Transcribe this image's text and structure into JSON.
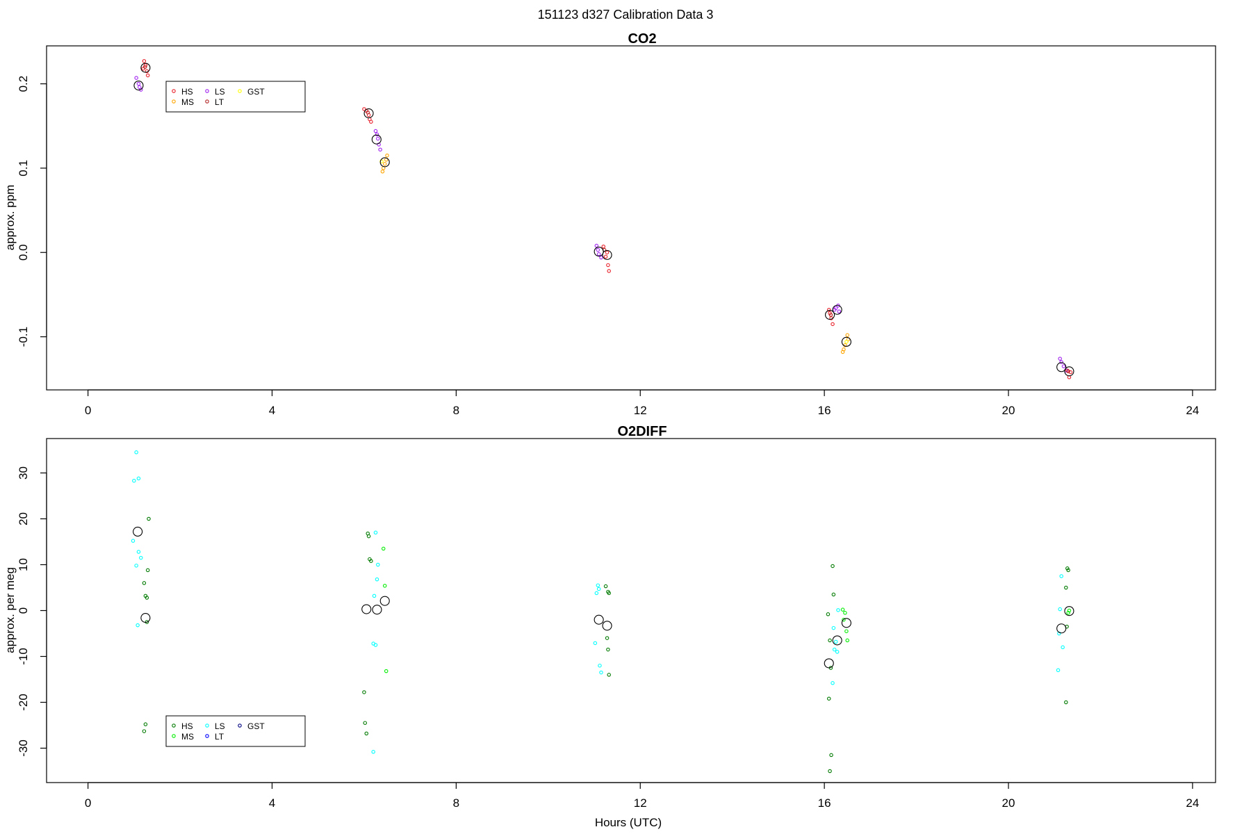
{
  "supertitle": "151123   d327   Calibration Data 3",
  "colors": {
    "HS_co2": "#e8202a",
    "MS_co2": "#ffa500",
    "LS_co2": "#a020f0",
    "LT_co2": "#b22222",
    "GST_co2": "#ffff00",
    "HS_o2": "#007a00",
    "MS_o2": "#00ee00",
    "LS_o2": "#00ffff",
    "LT_o2": "#0000ff",
    "GST_o2": "#000080",
    "mean": "#000000"
  },
  "chart_data": [
    {
      "type": "scatter",
      "title": "CO2",
      "xlabel": "",
      "ylabel": "approx. ppm",
      "xlim": [
        -0.9,
        24.5
      ],
      "ylim": [
        -0.163,
        0.245
      ],
      "xticks": [
        "0",
        "4",
        "8",
        "12",
        "16",
        "20",
        "24"
      ],
      "yticks": [
        "-0.1",
        "0.0",
        "0.1",
        "0.2"
      ],
      "legend": {
        "placement": "top-left",
        "entries": [
          "HS",
          "MS",
          "LS",
          "LT",
          "GST"
        ]
      },
      "series": [
        {
          "name": "HS",
          "points": [
            [
              1.22,
              0.227
            ],
            [
              1.25,
              0.222
            ],
            [
              1.28,
              0.215
            ],
            [
              1.3,
              0.21
            ],
            [
              1.2,
              0.218
            ],
            [
              6.0,
              0.17
            ],
            [
              6.05,
              0.168
            ],
            [
              6.1,
              0.163
            ],
            [
              6.12,
              0.158
            ],
            [
              6.15,
              0.155
            ],
            [
              11.2,
              0.007
            ],
            [
              11.28,
              0.0
            ],
            [
              11.3,
              -0.015
            ],
            [
              11.32,
              -0.022
            ],
            [
              11.25,
              -0.005
            ],
            [
              16.1,
              -0.068
            ],
            [
              16.15,
              -0.078
            ],
            [
              16.18,
              -0.085
            ],
            [
              16.12,
              -0.072
            ],
            [
              21.28,
              -0.14
            ],
            [
              21.32,
              -0.148
            ],
            [
              21.35,
              -0.142
            ]
          ]
        },
        {
          "name": "MS",
          "points": [
            [
              6.4,
              0.096
            ],
            [
              6.42,
              0.1
            ],
            [
              6.45,
              0.105
            ],
            [
              6.48,
              0.11
            ],
            [
              6.5,
              0.115
            ],
            [
              16.4,
              -0.118
            ],
            [
              16.42,
              -0.115
            ],
            [
              16.45,
              -0.11
            ],
            [
              16.5,
              -0.098
            ],
            [
              16.52,
              -0.103
            ]
          ]
        },
        {
          "name": "LS",
          "points": [
            [
              1.05,
              0.207
            ],
            [
              1.1,
              0.2
            ],
            [
              1.12,
              0.196
            ],
            [
              1.15,
              0.193
            ],
            [
              6.25,
              0.144
            ],
            [
              6.28,
              0.14
            ],
            [
              6.3,
              0.135
            ],
            [
              6.32,
              0.128
            ],
            [
              6.35,
              0.122
            ],
            [
              11.05,
              0.008
            ],
            [
              11.08,
              0.003
            ],
            [
              11.1,
              -0.002
            ],
            [
              11.15,
              -0.006
            ],
            [
              16.22,
              -0.068
            ],
            [
              16.25,
              -0.066
            ],
            [
              16.3,
              -0.063
            ],
            [
              16.32,
              -0.07
            ],
            [
              21.12,
              -0.126
            ],
            [
              21.15,
              -0.13
            ],
            [
              21.2,
              -0.135
            ],
            [
              21.25,
              -0.14
            ]
          ]
        },
        {
          "name": "LT",
          "points": [
            [
              1.24,
              0.22
            ],
            [
              6.08,
              0.166
            ],
            [
              11.22,
              0.003
            ],
            [
              16.14,
              -0.074
            ],
            [
              21.3,
              -0.141
            ]
          ]
        },
        {
          "name": "GST",
          "points": [
            [
              6.38,
              0.108
            ],
            [
              16.48,
              -0.106
            ]
          ]
        }
      ],
      "means": [
        [
          1.1,
          0.198
        ],
        [
          1.25,
          0.219
        ],
        [
          6.1,
          0.165
        ],
        [
          6.27,
          0.134
        ],
        [
          6.45,
          0.107
        ],
        [
          11.1,
          0.001
        ],
        [
          11.28,
          -0.003
        ],
        [
          16.12,
          -0.074
        ],
        [
          16.28,
          -0.068
        ],
        [
          16.48,
          -0.106
        ],
        [
          21.15,
          -0.136
        ],
        [
          21.32,
          -0.141
        ]
      ]
    },
    {
      "type": "scatter",
      "title": "O2DIFF",
      "xlabel": "Hours (UTC)",
      "ylabel": "approx. per meg",
      "xlim": [
        -0.9,
        24.5
      ],
      "ylim": [
        -37.5,
        37.5
      ],
      "xticks": [
        "0",
        "4",
        "8",
        "12",
        "16",
        "20",
        "24"
      ],
      "yticks": [
        "-30",
        "-20",
        "-10",
        "0",
        "10",
        "20",
        "30"
      ],
      "legend": {
        "placement": "bottom-left",
        "entries": [
          "HS",
          "MS",
          "LS",
          "LT",
          "GST"
        ]
      },
      "series": [
        {
          "name": "HS",
          "points": [
            [
              1.22,
              6
            ],
            [
              1.25,
              3.2
            ],
            [
              1.28,
              2.8
            ],
            [
              1.3,
              8.8
            ],
            [
              1.32,
              20
            ],
            [
              1.28,
              -2.5
            ],
            [
              1.25,
              -24.8
            ],
            [
              1.22,
              -26.3
            ],
            [
              6.0,
              -17.8
            ],
            [
              6.02,
              -24.5
            ],
            [
              6.05,
              -26.8
            ],
            [
              6.08,
              16.8
            ],
            [
              6.1,
              16.2
            ],
            [
              6.12,
              11.2
            ],
            [
              6.15,
              10.8
            ],
            [
              11.25,
              5.3
            ],
            [
              11.3,
              4.1
            ],
            [
              11.32,
              3.8
            ],
            [
              11.28,
              -6
            ],
            [
              11.3,
              -8.5
            ],
            [
              11.32,
              -14
            ],
            [
              16.08,
              -0.8
            ],
            [
              16.12,
              -6.5
            ],
            [
              16.14,
              -12.5
            ],
            [
              16.1,
              -19.2
            ],
            [
              16.15,
              -31.5
            ],
            [
              16.12,
              -35
            ],
            [
              16.18,
              9.7
            ],
            [
              16.2,
              3.5
            ],
            [
              21.28,
              9.2
            ],
            [
              21.3,
              8.8
            ],
            [
              21.25,
              5
            ],
            [
              21.27,
              -3.5
            ],
            [
              21.25,
              -20
            ]
          ]
        },
        {
          "name": "MS",
          "points": [
            [
              6.42,
              13.5
            ],
            [
              6.45,
              5.4
            ],
            [
              6.48,
              -13.2
            ],
            [
              16.4,
              0.2
            ],
            [
              16.45,
              -0.5
            ],
            [
              16.48,
              -4.5
            ],
            [
              16.5,
              -6.5
            ],
            [
              16.42,
              -2
            ],
            [
              21.32,
              0
            ],
            [
              21.3,
              -0.5
            ]
          ]
        },
        {
          "name": "LS",
          "points": [
            [
              1.05,
              34.5
            ],
            [
              1.0,
              28.3
            ],
            [
              1.1,
              28.8
            ],
            [
              0.98,
              15.2
            ],
            [
              1.1,
              12.8
            ],
            [
              1.15,
              11.5
            ],
            [
              1.05,
              9.8
            ],
            [
              1.08,
              -3.2
            ],
            [
              6.25,
              17
            ],
            [
              6.3,
              10
            ],
            [
              6.28,
              6.8
            ],
            [
              6.22,
              3.2
            ],
            [
              6.2,
              -7.2
            ],
            [
              6.25,
              -7.5
            ],
            [
              6.2,
              -30.8
            ],
            [
              11.08,
              5.5
            ],
            [
              11.1,
              4.7
            ],
            [
              11.05,
              3.8
            ],
            [
              11.02,
              -7.1
            ],
            [
              11.12,
              -12
            ],
            [
              11.15,
              -13.5
            ],
            [
              16.2,
              -3.8
            ],
            [
              16.25,
              -6.8
            ],
            [
              16.22,
              -8.5
            ],
            [
              16.28,
              -9
            ],
            [
              16.18,
              -15.8
            ],
            [
              16.3,
              0.1
            ],
            [
              21.15,
              7.5
            ],
            [
              21.12,
              0.3
            ],
            [
              21.1,
              -5
            ],
            [
              21.08,
              -13
            ],
            [
              21.18,
              -8
            ]
          ]
        },
        {
          "name": "LT",
          "points": []
        },
        {
          "name": "GST",
          "points": []
        }
      ],
      "means": [
        [
          1.08,
          17.2
        ],
        [
          1.25,
          -1.6
        ],
        [
          6.05,
          0.3
        ],
        [
          6.28,
          0.2
        ],
        [
          6.45,
          2.1
        ],
        [
          11.1,
          -2
        ],
        [
          11.28,
          -3.3
        ],
        [
          16.1,
          -11.5
        ],
        [
          16.28,
          -6.5
        ],
        [
          16.48,
          -2.7
        ],
        [
          21.15,
          -3.9
        ],
        [
          21.32,
          -0.1
        ]
      ]
    }
  ]
}
